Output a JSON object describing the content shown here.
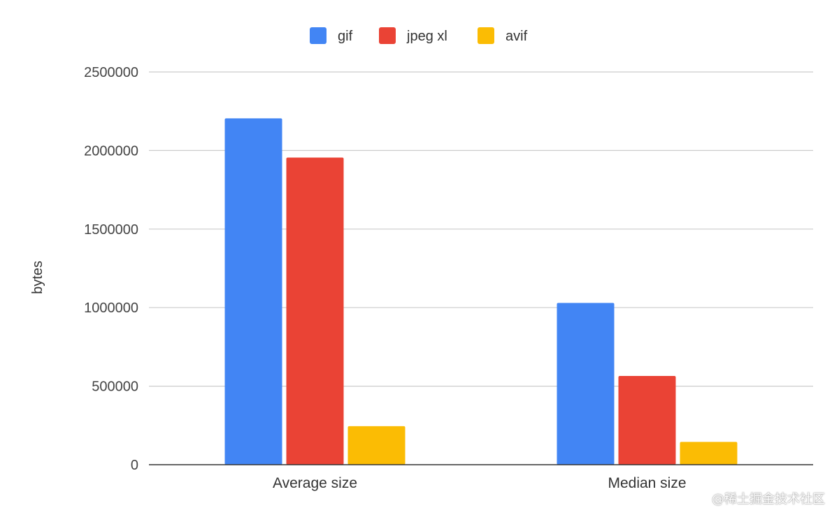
{
  "chart_data": {
    "type": "bar",
    "categories": [
      "Average size",
      "Median size"
    ],
    "series": [
      {
        "name": "gif",
        "color": "#4285F4",
        "values": [
          2205000,
          1030000
        ]
      },
      {
        "name": "jpeg xl",
        "color": "#EA4335",
        "values": [
          1955000,
          565000
        ]
      },
      {
        "name": "avif",
        "color": "#FBBC04",
        "values": [
          245000,
          145000
        ]
      }
    ],
    "ylabel": "bytes",
    "ylim": [
      0,
      2500000
    ],
    "yticks": [
      0,
      500000,
      1000000,
      1500000,
      2000000,
      2500000
    ],
    "ytick_labels": [
      "0",
      "500000",
      "1000000",
      "1500000",
      "2000000",
      "2500000"
    ],
    "grid": true,
    "legend_position": "top"
  },
  "watermark": "@稀土掘金技术社区"
}
